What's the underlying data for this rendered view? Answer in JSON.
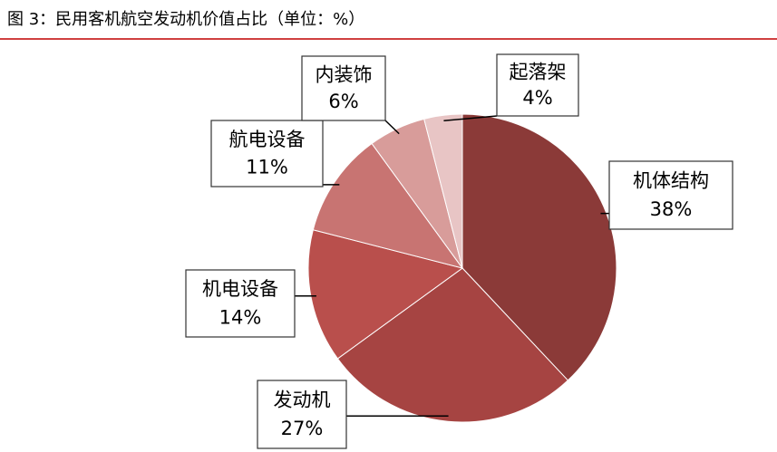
{
  "chart_data": {
    "type": "pie",
    "title": "图 3：民用客机航空发动机价值占比（单位：%）",
    "categories": [
      "机体结构",
      "发动机",
      "机电设备",
      "航电设备",
      "内装饰",
      "起落架"
    ],
    "values": [
      38,
      27,
      14,
      11,
      6,
      4
    ],
    "value_labels": [
      "38%",
      "27%",
      "14%",
      "11%",
      "6%",
      "4%"
    ],
    "colors": [
      "#8b3a38",
      "#a64442",
      "#b94f4c",
      "#c87472",
      "#d89c9a",
      "#e8c5c5"
    ]
  }
}
